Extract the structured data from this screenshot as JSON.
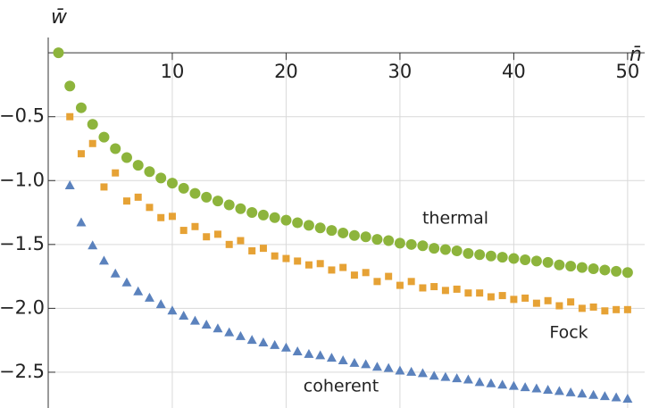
{
  "chart_data": {
    "type": "scatter",
    "x_label": "n̄",
    "y_label": "w̄",
    "xlim": [
      -0.9,
      51.5
    ],
    "ylim": [
      -2.78,
      0.05
    ],
    "xticks": [
      10,
      20,
      30,
      40,
      50
    ],
    "yticks": [
      {
        "value": -0.5,
        "label": "−0.5"
      },
      {
        "value": -1.0,
        "label": "−1.0"
      },
      {
        "value": -1.5,
        "label": "−1.5"
      },
      {
        "value": -2.0,
        "label": "−2.0"
      },
      {
        "value": -2.5,
        "label": "−2.5"
      }
    ],
    "grid": true,
    "annotations": [
      "thermal",
      "Fock",
      "coherent"
    ],
    "series": [
      {
        "name": "thermal",
        "color": "#8db43c",
        "marker": "circle",
        "x": [
          0,
          1,
          2,
          3,
          4,
          5,
          6,
          7,
          8,
          9,
          10,
          11,
          12,
          13,
          14,
          15,
          16,
          17,
          18,
          19,
          20,
          21,
          22,
          23,
          24,
          25,
          26,
          27,
          28,
          29,
          30,
          31,
          32,
          33,
          34,
          35,
          36,
          37,
          38,
          39,
          40,
          41,
          42,
          43,
          44,
          45,
          46,
          47,
          48,
          49,
          50
        ],
        "values": [
          0,
          -0.26,
          -0.43,
          -0.56,
          -0.66,
          -0.75,
          -0.82,
          -0.88,
          -0.93,
          -0.98,
          -1.02,
          -1.06,
          -1.1,
          -1.13,
          -1.16,
          -1.19,
          -1.22,
          -1.25,
          -1.27,
          -1.29,
          -1.31,
          -1.33,
          -1.35,
          -1.37,
          -1.39,
          -1.41,
          -1.43,
          -1.44,
          -1.46,
          -1.47,
          -1.49,
          -1.5,
          -1.51,
          -1.53,
          -1.54,
          -1.55,
          -1.57,
          -1.58,
          -1.59,
          -1.6,
          -1.61,
          -1.62,
          -1.63,
          -1.64,
          -1.66,
          -1.67,
          -1.68,
          -1.69,
          -1.7,
          -1.71,
          -1.72
        ]
      },
      {
        "name": "Fock",
        "color": "#e6a235",
        "marker": "square",
        "x": [
          1,
          2,
          3,
          4,
          5,
          6,
          7,
          8,
          9,
          10,
          11,
          12,
          13,
          14,
          15,
          16,
          17,
          18,
          19,
          20,
          21,
          22,
          23,
          24,
          25,
          26,
          27,
          28,
          29,
          30,
          31,
          32,
          33,
          34,
          35,
          36,
          37,
          38,
          39,
          40,
          41,
          42,
          43,
          44,
          45,
          46,
          47,
          48,
          49,
          50
        ],
        "values": [
          -0.5,
          -0.79,
          -0.71,
          -1.05,
          -0.94,
          -1.16,
          -1.13,
          -1.21,
          -1.29,
          -1.28,
          -1.39,
          -1.36,
          -1.44,
          -1.42,
          -1.5,
          -1.47,
          -1.55,
          -1.53,
          -1.59,
          -1.61,
          -1.63,
          -1.66,
          -1.65,
          -1.7,
          -1.68,
          -1.74,
          -1.72,
          -1.79,
          -1.75,
          -1.82,
          -1.79,
          -1.84,
          -1.83,
          -1.86,
          -1.85,
          -1.88,
          -1.88,
          -1.91,
          -1.9,
          -1.93,
          -1.92,
          -1.96,
          -1.94,
          -1.98,
          -1.95,
          -2.0,
          -1.99,
          -2.02,
          -2.01,
          -2.01
        ]
      },
      {
        "name": "coherent",
        "color": "#5b82bd",
        "marker": "triangle",
        "x": [
          1,
          2,
          3,
          4,
          5,
          6,
          7,
          8,
          9,
          10,
          11,
          12,
          13,
          14,
          15,
          16,
          17,
          18,
          19,
          20,
          21,
          22,
          23,
          24,
          25,
          26,
          27,
          28,
          29,
          30,
          31,
          32,
          33,
          34,
          35,
          36,
          37,
          38,
          39,
          40,
          41,
          42,
          43,
          44,
          45,
          46,
          47,
          48,
          49,
          50
        ],
        "values": [
          -1.04,
          -1.33,
          -1.51,
          -1.63,
          -1.73,
          -1.8,
          -1.87,
          -1.92,
          -1.97,
          -2.02,
          -2.06,
          -2.1,
          -2.13,
          -2.16,
          -2.19,
          -2.22,
          -2.25,
          -2.27,
          -2.29,
          -2.31,
          -2.34,
          -2.36,
          -2.37,
          -2.39,
          -2.41,
          -2.43,
          -2.44,
          -2.46,
          -2.47,
          -2.49,
          -2.5,
          -2.51,
          -2.53,
          -2.54,
          -2.55,
          -2.56,
          -2.58,
          -2.59,
          -2.6,
          -2.61,
          -2.62,
          -2.63,
          -2.64,
          -2.65,
          -2.66,
          -2.67,
          -2.68,
          -2.69,
          -2.7,
          -2.71
        ]
      }
    ]
  }
}
